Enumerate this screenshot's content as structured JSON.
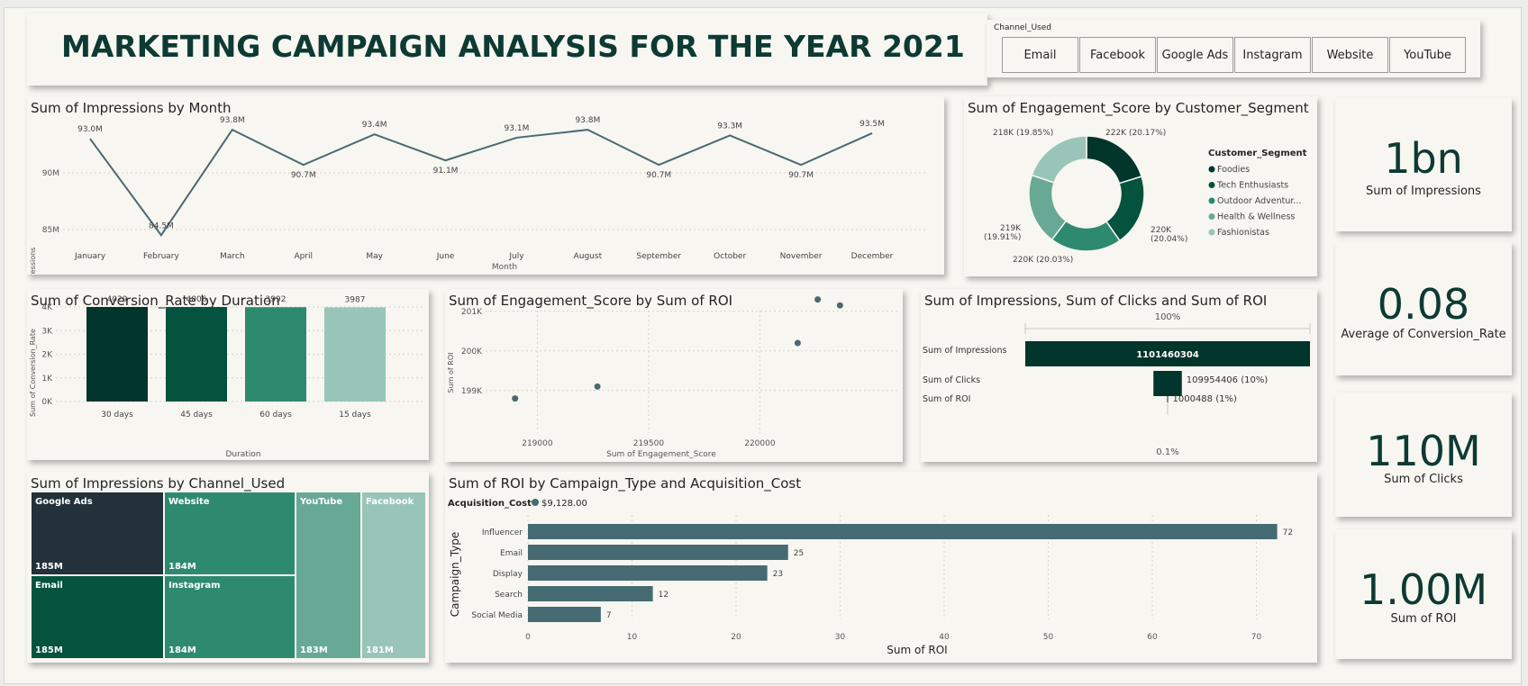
{
  "header": {
    "title": "MARKETING CAMPAIGN ANALYSIS FOR THE YEAR 2021"
  },
  "slicer": {
    "title": "Channel_Used",
    "options": [
      "Email",
      "Facebook",
      "Google Ads",
      "Instagram",
      "Website",
      "YouTube"
    ]
  },
  "impressions_by_month": {
    "title": "Sum of Impressions by Month",
    "ylabel": "Sum of Impressions",
    "xlabel": "Month",
    "yticks": [
      "90M",
      "85M"
    ],
    "point_labels": [
      "93.0M",
      "84.5M",
      "93.8M",
      "90.7M",
      "93.4M",
      "91.1M",
      "93.1M",
      "93.8M",
      "90.7M",
      "93.3M",
      "90.7M",
      "93.5M"
    ]
  },
  "engagement_by_segment": {
    "title": "Sum of Engagement_Score by Customer_Segment",
    "legend_title": "Customer_Segment",
    "legend": [
      "Foodies",
      "Tech Enthusiasts",
      "Outdoor Adventur...",
      "Health & Wellness",
      "Fashionistas"
    ],
    "slice_labels": [
      "222K (20.17%)",
      "220K",
      "(20.04%)",
      "220K (20.03%)",
      "219K",
      "(19.91%)",
      "218K (19.85%)"
    ]
  },
  "conversion_by_duration": {
    "title": "Sum of Conversion_Rate by Duration",
    "ylabel": "Sum of Conversion_Rate",
    "xlabel": "Duration",
    "yticks": [
      "4K",
      "3K",
      "2K",
      "1K",
      "0K"
    ]
  },
  "engagement_vs_roi": {
    "title": "Sum of Engagement_Score by Sum of ROI",
    "ylabel": "Sum of ROI",
    "xlabel": "Sum of Engagement_Score",
    "yticks": [
      "201K",
      "200K",
      "199K"
    ],
    "xticks": [
      "219000",
      "219500",
      "220000"
    ]
  },
  "funnel": {
    "title": "Sum of Impressions, Sum of Clicks and Sum of ROI",
    "top_pct": "100%",
    "bottom_pct": "0.1%",
    "rows": [
      {
        "label": "Sum of Impressions",
        "value_label": "1101460304"
      },
      {
        "label": "Sum of Clicks",
        "value_label": "109954406 (10%)"
      },
      {
        "label": "Sum of ROI",
        "value_label": "1000488 (1%)"
      }
    ]
  },
  "kpis": {
    "impressions": {
      "value": "1bn",
      "label": "Sum of Impressions"
    },
    "conversion": {
      "value": "0.08",
      "label": "Average of Conversion_Rate"
    },
    "clicks": {
      "value": "110M",
      "label": "Sum of Clicks"
    },
    "roi": {
      "value": "1.00M",
      "label": "Sum of ROI"
    }
  },
  "treemap": {
    "title": "Sum of Impressions by Channel_Used",
    "tiles": [
      {
        "label": "Google Ads",
        "value": "185M"
      },
      {
        "label": "Website",
        "value": "184M"
      },
      {
        "label": "YouTube",
        "value": "183M"
      },
      {
        "label": "Facebook",
        "value": "181M"
      },
      {
        "label": "Email",
        "value": "185M"
      },
      {
        "label": "Instagram",
        "value": "184M"
      }
    ]
  },
  "roi_by_campaign": {
    "title": "Sum of ROI by Campaign_Type and Acquisition_Cost",
    "legend_title": "Acquisition_Cost",
    "legend_item": "$9,128.00",
    "ylabel": "Campaign_Type",
    "xlabel": "Sum of ROI"
  },
  "colors": {
    "dark": "#00352b",
    "green1": "#03533e",
    "green2": "#2e8a6e",
    "green3": "#68a995",
    "green4": "#98c5b7",
    "line": "#4a6970",
    "bar": "#466a72",
    "navy": "#22313a"
  },
  "chart_data": [
    {
      "type": "line",
      "title": "Sum of Impressions by Month",
      "xlabel": "Month",
      "ylabel": "Sum of Impressions",
      "x": [
        "January",
        "February",
        "March",
        "April",
        "May",
        "June",
        "July",
        "August",
        "September",
        "October",
        "November",
        "December"
      ],
      "values": [
        93.0,
        84.5,
        93.8,
        90.7,
        93.4,
        91.1,
        93.1,
        93.8,
        90.7,
        93.3,
        90.7,
        93.5
      ],
      "unit": "M",
      "ylim": [
        85,
        95
      ],
      "grid": true
    },
    {
      "type": "pie",
      "title": "Sum of Engagement_Score by Customer_Segment",
      "categories": [
        "Foodies",
        "Tech Enthusiasts",
        "Outdoor Adventur...",
        "Health & Wellness",
        "Fashionistas"
      ],
      "values": [
        222,
        220,
        220,
        219,
        218
      ],
      "percent": [
        20.17,
        20.04,
        20.03,
        19.91,
        19.85
      ],
      "unit": "K",
      "legend": "right"
    },
    {
      "type": "bar",
      "title": "Sum of Conversion_Rate by Duration",
      "xlabel": "Duration",
      "ylabel": "Sum of Conversion_Rate",
      "categories": [
        "30 days",
        "45 days",
        "60 days",
        "15 days"
      ],
      "values": [
        4029,
        4006,
        3992,
        3987
      ],
      "ylim": [
        0,
        4000
      ]
    },
    {
      "type": "scatter",
      "title": "Sum of Engagement_Score by Sum of ROI",
      "xlabel": "Sum of Engagement_Score",
      "ylabel": "Sum of ROI",
      "points": [
        [
          218900,
          198800
        ],
        [
          219270,
          199100
        ],
        [
          220170,
          200200
        ],
        [
          220260,
          201300
        ],
        [
          220360,
          201150
        ]
      ],
      "xlim": [
        218800,
        220400
      ],
      "ylim": [
        198700,
        201400
      ]
    },
    {
      "type": "bar",
      "title": "Sum of Impressions, Sum of Clicks and Sum of ROI",
      "categories": [
        "Sum of Impressions",
        "Sum of Clicks",
        "Sum of ROI"
      ],
      "values": [
        1101460304,
        109954406,
        1000488
      ],
      "percent_of_first": [
        100,
        10,
        0.1
      ]
    },
    {
      "type": "table",
      "title": "Sum of Impressions by Channel_Used",
      "categories": [
        "Google Ads",
        "Email",
        "Website",
        "Instagram",
        "YouTube",
        "Facebook"
      ],
      "values": [
        185,
        185,
        184,
        184,
        183,
        181
      ],
      "unit": "M"
    },
    {
      "type": "bar",
      "title": "Sum of ROI by Campaign_Type and Acquisition_Cost",
      "xlabel": "Sum of ROI",
      "ylabel": "Campaign_Type",
      "categories": [
        "Influencer",
        "Email",
        "Display",
        "Search",
        "Social Media"
      ],
      "values": [
        72,
        25,
        23,
        12,
        7
      ],
      "xlim": [
        0,
        75
      ],
      "xticks": [
        0,
        10,
        20,
        30,
        40,
        50,
        60,
        70
      ],
      "series": [
        {
          "name": "$9,128.00",
          "values": [
            72,
            25,
            23,
            12,
            7
          ]
        }
      ]
    }
  ]
}
